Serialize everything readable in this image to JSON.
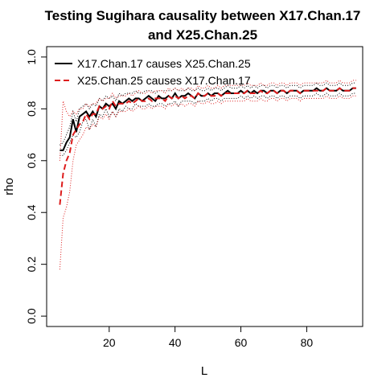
{
  "chart_data": {
    "type": "line",
    "title_line1": "Testing Sugihara causality between  X17.Chan.17",
    "title_line2": "and X25.Chan.25",
    "xlabel": "L",
    "ylabel": "rho",
    "xlim": [
      1,
      97
    ],
    "ylim": [
      -0.04,
      1.04
    ],
    "x_ticks": [
      20,
      40,
      60,
      80
    ],
    "y_ticks": [
      0.0,
      0.2,
      0.4,
      0.6,
      0.8,
      1.0
    ],
    "y_tick_labels": [
      "0.0",
      "0.2",
      "0.4",
      "0.6",
      "0.8",
      "1.0"
    ],
    "legend_position": "top-left",
    "x": [
      5,
      6,
      7,
      8,
      9,
      10,
      11,
      12,
      13,
      14,
      15,
      16,
      17,
      18,
      19,
      20,
      21,
      22,
      23,
      24,
      25,
      26,
      27,
      28,
      29,
      30,
      31,
      32,
      33,
      34,
      35,
      36,
      37,
      38,
      39,
      40,
      41,
      42,
      43,
      44,
      45,
      46,
      47,
      48,
      49,
      50,
      51,
      52,
      53,
      54,
      55,
      56,
      57,
      58,
      59,
      60,
      61,
      62,
      63,
      64,
      65,
      66,
      67,
      68,
      69,
      70,
      71,
      72,
      73,
      74,
      75,
      76,
      77,
      78,
      79,
      80,
      81,
      82,
      83,
      84,
      85,
      86,
      87,
      88,
      89,
      90,
      91,
      92,
      93,
      94,
      95
    ],
    "series": [
      {
        "name": "X17.Chan.17 causes X25.Chan.25",
        "color": "#000000",
        "style": "solid",
        "values": [
          0.64,
          0.64,
          0.67,
          0.69,
          0.76,
          0.71,
          0.77,
          0.78,
          0.79,
          0.77,
          0.79,
          0.77,
          0.81,
          0.8,
          0.82,
          0.81,
          0.82,
          0.8,
          0.83,
          0.82,
          0.83,
          0.84,
          0.83,
          0.84,
          0.84,
          0.83,
          0.84,
          0.85,
          0.84,
          0.83,
          0.85,
          0.84,
          0.84,
          0.85,
          0.84,
          0.86,
          0.84,
          0.85,
          0.85,
          0.86,
          0.85,
          0.84,
          0.86,
          0.85,
          0.85,
          0.86,
          0.85,
          0.86,
          0.86,
          0.85,
          0.86,
          0.87,
          0.86,
          0.86,
          0.86,
          0.87,
          0.86,
          0.87,
          0.86,
          0.87,
          0.86,
          0.87,
          0.87,
          0.86,
          0.87,
          0.87,
          0.86,
          0.87,
          0.87,
          0.86,
          0.87,
          0.87,
          0.87,
          0.86,
          0.87,
          0.87,
          0.87,
          0.87,
          0.88,
          0.87,
          0.87,
          0.88,
          0.87,
          0.87,
          0.87,
          0.88,
          0.87,
          0.87,
          0.87,
          0.88,
          0.88
        ],
        "lower": [
          0.62,
          0.62,
          0.64,
          0.67,
          0.7,
          0.69,
          0.71,
          0.75,
          0.76,
          0.72,
          0.76,
          0.73,
          0.78,
          0.77,
          0.8,
          0.77,
          0.79,
          0.77,
          0.8,
          0.79,
          0.81,
          0.8,
          0.8,
          0.82,
          0.81,
          0.81,
          0.81,
          0.82,
          0.81,
          0.81,
          0.82,
          0.82,
          0.81,
          0.82,
          0.82,
          0.83,
          0.81,
          0.83,
          0.83,
          0.83,
          0.83,
          0.82,
          0.83,
          0.83,
          0.83,
          0.84,
          0.83,
          0.84,
          0.84,
          0.83,
          0.84,
          0.84,
          0.84,
          0.84,
          0.84,
          0.85,
          0.84,
          0.85,
          0.84,
          0.85,
          0.84,
          0.85,
          0.85,
          0.84,
          0.85,
          0.85,
          0.84,
          0.85,
          0.85,
          0.84,
          0.85,
          0.85,
          0.85,
          0.84,
          0.85,
          0.85,
          0.85,
          0.85,
          0.86,
          0.85,
          0.85,
          0.86,
          0.85,
          0.85,
          0.85,
          0.86,
          0.85,
          0.85,
          0.85,
          0.86,
          0.86
        ],
        "upper": [
          0.66,
          0.67,
          0.7,
          0.73,
          0.79,
          0.75,
          0.8,
          0.81,
          0.82,
          0.8,
          0.82,
          0.81,
          0.84,
          0.83,
          0.85,
          0.84,
          0.85,
          0.83,
          0.86,
          0.85,
          0.86,
          0.86,
          0.86,
          0.87,
          0.86,
          0.86,
          0.87,
          0.87,
          0.87,
          0.86,
          0.87,
          0.87,
          0.87,
          0.87,
          0.87,
          0.88,
          0.87,
          0.87,
          0.87,
          0.88,
          0.87,
          0.87,
          0.88,
          0.87,
          0.87,
          0.88,
          0.87,
          0.88,
          0.88,
          0.87,
          0.88,
          0.89,
          0.88,
          0.88,
          0.88,
          0.89,
          0.88,
          0.89,
          0.88,
          0.89,
          0.88,
          0.89,
          0.89,
          0.88,
          0.89,
          0.89,
          0.88,
          0.89,
          0.89,
          0.88,
          0.89,
          0.89,
          0.89,
          0.88,
          0.89,
          0.89,
          0.89,
          0.89,
          0.9,
          0.89,
          0.89,
          0.9,
          0.89,
          0.89,
          0.89,
          0.9,
          0.89,
          0.89,
          0.89,
          0.9,
          0.9
        ]
      },
      {
        "name": "X25.Chan.25 causes X17.Chan.17",
        "color": "#dd1c1c",
        "style": "dashed",
        "values": [
          0.43,
          0.55,
          0.6,
          0.63,
          0.7,
          0.72,
          0.74,
          0.75,
          0.78,
          0.76,
          0.78,
          0.78,
          0.81,
          0.8,
          0.81,
          0.8,
          0.83,
          0.81,
          0.82,
          0.82,
          0.82,
          0.83,
          0.82,
          0.83,
          0.84,
          0.83,
          0.83,
          0.84,
          0.83,
          0.84,
          0.84,
          0.84,
          0.83,
          0.85,
          0.84,
          0.85,
          0.84,
          0.85,
          0.84,
          0.85,
          0.85,
          0.84,
          0.86,
          0.85,
          0.85,
          0.86,
          0.85,
          0.85,
          0.86,
          0.85,
          0.86,
          0.86,
          0.86,
          0.86,
          0.86,
          0.86,
          0.86,
          0.87,
          0.86,
          0.86,
          0.86,
          0.87,
          0.86,
          0.86,
          0.87,
          0.87,
          0.86,
          0.87,
          0.87,
          0.86,
          0.87,
          0.87,
          0.87,
          0.86,
          0.87,
          0.87,
          0.87,
          0.87,
          0.87,
          0.87,
          0.87,
          0.88,
          0.87,
          0.87,
          0.87,
          0.88,
          0.87,
          0.87,
          0.87,
          0.88,
          0.88
        ],
        "lower": [
          0.18,
          0.38,
          0.42,
          0.48,
          0.6,
          0.66,
          0.68,
          0.7,
          0.73,
          0.72,
          0.74,
          0.73,
          0.77,
          0.76,
          0.78,
          0.76,
          0.79,
          0.77,
          0.79,
          0.79,
          0.79,
          0.8,
          0.79,
          0.8,
          0.81,
          0.8,
          0.8,
          0.81,
          0.8,
          0.81,
          0.81,
          0.81,
          0.8,
          0.82,
          0.81,
          0.82,
          0.81,
          0.82,
          0.81,
          0.82,
          0.82,
          0.81,
          0.83,
          0.82,
          0.82,
          0.83,
          0.82,
          0.82,
          0.83,
          0.82,
          0.83,
          0.83,
          0.83,
          0.83,
          0.83,
          0.83,
          0.83,
          0.84,
          0.83,
          0.83,
          0.83,
          0.84,
          0.83,
          0.83,
          0.84,
          0.84,
          0.83,
          0.84,
          0.84,
          0.83,
          0.84,
          0.84,
          0.84,
          0.83,
          0.84,
          0.84,
          0.84,
          0.84,
          0.84,
          0.84,
          0.84,
          0.85,
          0.84,
          0.84,
          0.84,
          0.85,
          0.84,
          0.84,
          0.84,
          0.85,
          0.85
        ],
        "upper": [
          0.6,
          0.83,
          0.79,
          0.77,
          0.79,
          0.78,
          0.8,
          0.8,
          0.82,
          0.81,
          0.82,
          0.82,
          0.84,
          0.83,
          0.84,
          0.84,
          0.86,
          0.84,
          0.85,
          0.85,
          0.85,
          0.86,
          0.85,
          0.86,
          0.87,
          0.86,
          0.86,
          0.87,
          0.86,
          0.87,
          0.87,
          0.87,
          0.86,
          0.88,
          0.87,
          0.88,
          0.87,
          0.88,
          0.87,
          0.88,
          0.88,
          0.87,
          0.89,
          0.88,
          0.88,
          0.89,
          0.88,
          0.88,
          0.89,
          0.88,
          0.89,
          0.89,
          0.89,
          0.89,
          0.89,
          0.89,
          0.89,
          0.9,
          0.89,
          0.89,
          0.89,
          0.9,
          0.89,
          0.89,
          0.9,
          0.9,
          0.89,
          0.9,
          0.9,
          0.89,
          0.9,
          0.9,
          0.9,
          0.89,
          0.9,
          0.9,
          0.9,
          0.9,
          0.9,
          0.9,
          0.9,
          0.91,
          0.9,
          0.9,
          0.9,
          0.91,
          0.9,
          0.9,
          0.9,
          0.91,
          0.91
        ]
      }
    ]
  }
}
